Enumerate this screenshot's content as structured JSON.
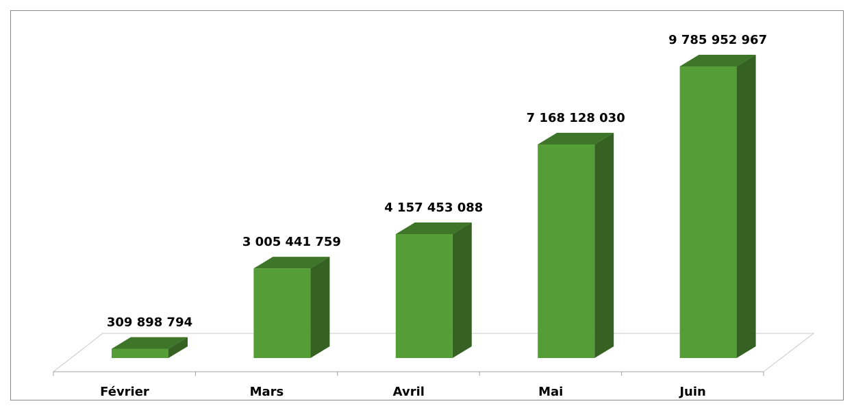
{
  "chart_data": {
    "type": "bar3d",
    "categories": [
      "Février",
      "Mars",
      "Avril",
      "Mai",
      "Juin"
    ],
    "values": [
      309898794,
      3005441759,
      4157453088,
      7168128030,
      9785952967
    ],
    "value_labels": [
      "309 898 794",
      "3 005 441 759",
      "4 157 453 088",
      "7 168 128 030",
      "9 785 952 967"
    ],
    "color": "#559e37"
  }
}
